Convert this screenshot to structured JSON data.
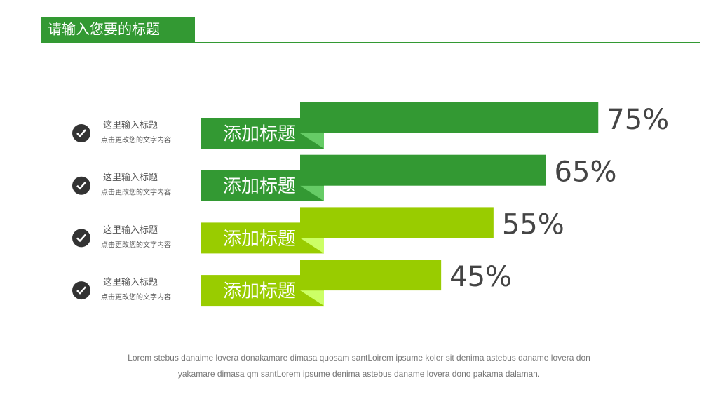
{
  "header": {
    "title": "请输入您要的标题"
  },
  "list": [
    {
      "title": "这里输入标题",
      "subtitle": "点击更改您的文字内容"
    },
    {
      "title": "这里输入标题",
      "subtitle": "点击更改您的文字内容"
    },
    {
      "title": "这里输入标题",
      "subtitle": "点击更改您的文字内容"
    },
    {
      "title": "这里输入标题",
      "subtitle": "点击更改您的文字内容"
    }
  ],
  "chart_data": {
    "type": "bar",
    "categories": [
      "添加标题",
      "添加标题",
      "添加标题",
      "添加标题"
    ],
    "values": [
      75,
      65,
      55,
      45
    ],
    "value_labels": [
      "75%",
      "65%",
      "55%",
      "45%"
    ],
    "colors": [
      "#339933",
      "#339933",
      "#99cc00",
      "#99cc00"
    ]
  },
  "footer": {
    "lines": [
      "Lorem stebus danaime lovera donakamare dimasa quosam santLoirem ipsume koler sit denima astebus daname lovera don",
      "yakamare dimasa qm santLorem ipsume denima astebus daname lovera dono pakama dalaman."
    ]
  }
}
